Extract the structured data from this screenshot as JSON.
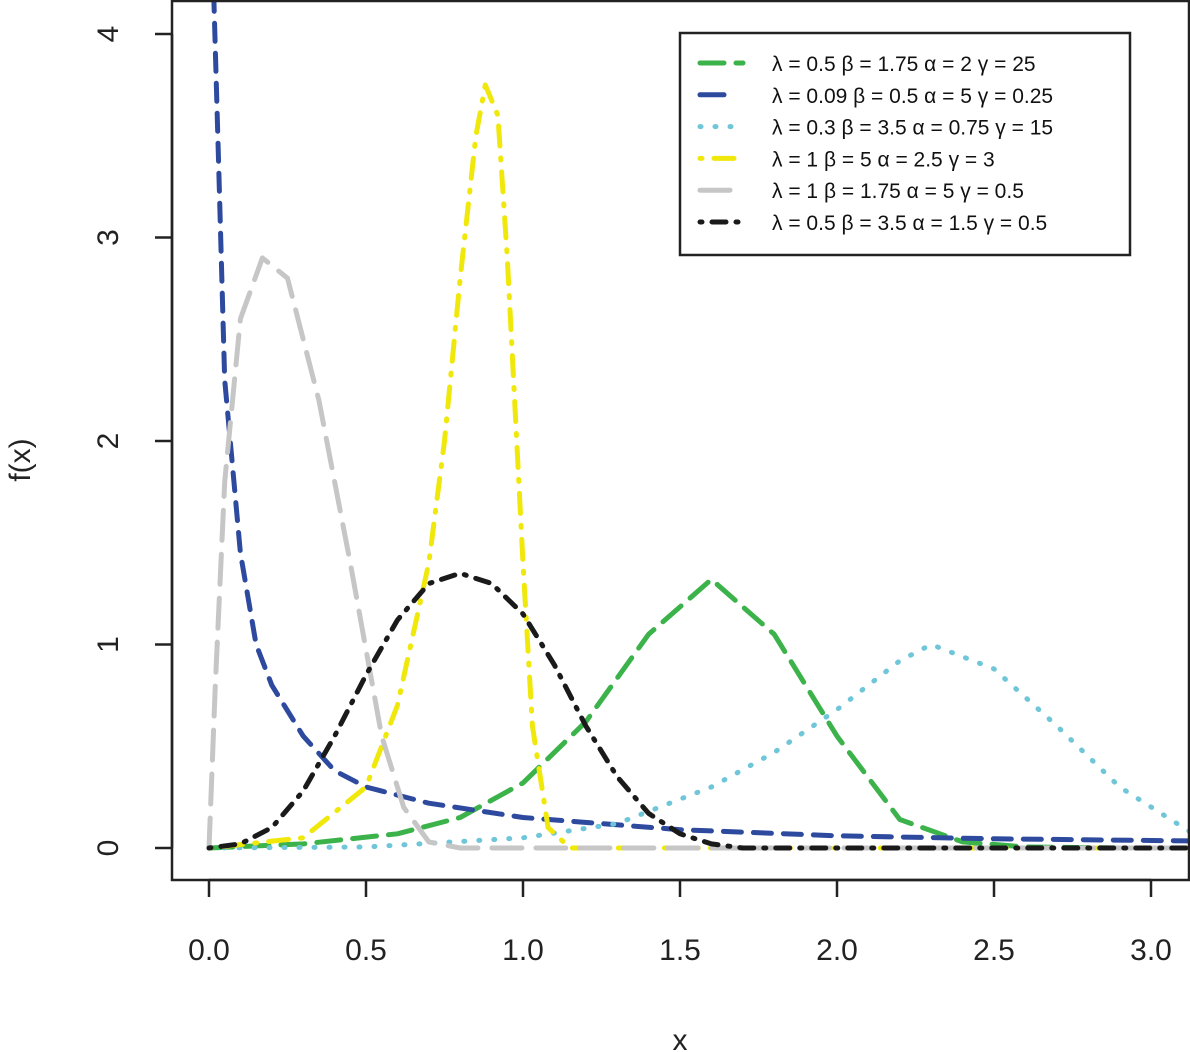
{
  "chart_data": {
    "type": "line",
    "title": "",
    "xlabel": "x",
    "ylabel": "f(x)",
    "xlim": [
      -0.118,
      3.124
    ],
    "ylim": [
      -0.157,
      4.167
    ],
    "xticks": [
      "0.0",
      "0.5",
      "1.0",
      "1.5",
      "2.0",
      "2.5",
      "3.0"
    ],
    "xtick_values": [
      0,
      0.5,
      1,
      1.5,
      2,
      2.5,
      3
    ],
    "yticks": [
      "0",
      "1",
      "2",
      "3",
      "4"
    ],
    "ytick_values": [
      0,
      1,
      2,
      3,
      4
    ],
    "grid": false,
    "legend_position": "top-right",
    "series": [
      {
        "name": "λ = 0.5  β = 1.75  α = 2  γ = 25",
        "color": "#3cb34a",
        "style": "longdash",
        "x": [
          0,
          0.3,
          0.6,
          0.8,
          1.0,
          1.2,
          1.4,
          1.6,
          1.8,
          2.0,
          2.2,
          2.4,
          2.6,
          2.9,
          3.124
        ],
        "y": [
          0,
          0.02,
          0.07,
          0.15,
          0.32,
          0.62,
          1.05,
          1.32,
          1.05,
          0.55,
          0.14,
          0.03,
          0.005,
          0,
          0
        ]
      },
      {
        "name": "λ = 0.09  β = 0.5  α = 5  γ = 0.25",
        "color": "#2e4a9e",
        "style": "dashed",
        "x": [
          0.015,
          0.03,
          0.05,
          0.1,
          0.15,
          0.2,
          0.3,
          0.4,
          0.5,
          0.7,
          1.0,
          1.5,
          2.0,
          2.5,
          3.124
        ],
        "y": [
          4.2,
          3.4,
          2.3,
          1.45,
          1.0,
          0.8,
          0.55,
          0.38,
          0.3,
          0.22,
          0.15,
          0.09,
          0.06,
          0.045,
          0.035
        ]
      },
      {
        "name": "λ = 0.3  β = 3.5  α = 0.75  γ = 15",
        "color": "#6ec6d8",
        "style": "dotted",
        "x": [
          0,
          0.5,
          1.0,
          1.3,
          1.6,
          1.8,
          2.0,
          2.2,
          2.3,
          2.5,
          2.7,
          2.9,
          3.124
        ],
        "y": [
          0,
          0.005,
          0.05,
          0.12,
          0.3,
          0.47,
          0.68,
          0.92,
          1.0,
          0.88,
          0.6,
          0.3,
          0.08
        ]
      },
      {
        "name": "λ = 1  β = 5  α = 2.5  γ = 3",
        "color": "#f0e80a",
        "style": "dotdash",
        "x": [
          0,
          0.3,
          0.5,
          0.6,
          0.7,
          0.75,
          0.8,
          0.85,
          0.88,
          0.92,
          0.95,
          1.0,
          1.03,
          1.08,
          1.15,
          3.124
        ],
        "y": [
          0,
          0.05,
          0.3,
          0.7,
          1.4,
          2.0,
          2.8,
          3.5,
          3.75,
          3.6,
          2.9,
          1.4,
          0.6,
          0.1,
          0,
          0
        ]
      },
      {
        "name": "λ = 1  β = 1.75  α = 5  γ = 0.5",
        "color": "#c6c6c6",
        "style": "longdash",
        "x": [
          0,
          0.02,
          0.05,
          0.1,
          0.17,
          0.25,
          0.35,
          0.45,
          0.55,
          0.62,
          0.7,
          0.8,
          3.124
        ],
        "y": [
          0,
          0.8,
          1.8,
          2.6,
          2.9,
          2.8,
          2.2,
          1.4,
          0.55,
          0.2,
          0.03,
          0,
          0
        ]
      },
      {
        "name": "λ = 0.5  β = 3.5  α = 1.5  γ = 0.5",
        "color": "#1a1a1a",
        "style": "twodash",
        "x": [
          0,
          0.1,
          0.2,
          0.3,
          0.4,
          0.5,
          0.6,
          0.7,
          0.8,
          0.9,
          1.0,
          1.1,
          1.2,
          1.3,
          1.4,
          1.5,
          1.6,
          1.7,
          3.124
        ],
        "y": [
          0,
          0.02,
          0.1,
          0.28,
          0.55,
          0.85,
          1.12,
          1.3,
          1.35,
          1.3,
          1.15,
          0.9,
          0.6,
          0.35,
          0.17,
          0.07,
          0.02,
          0,
          0
        ]
      }
    ]
  }
}
